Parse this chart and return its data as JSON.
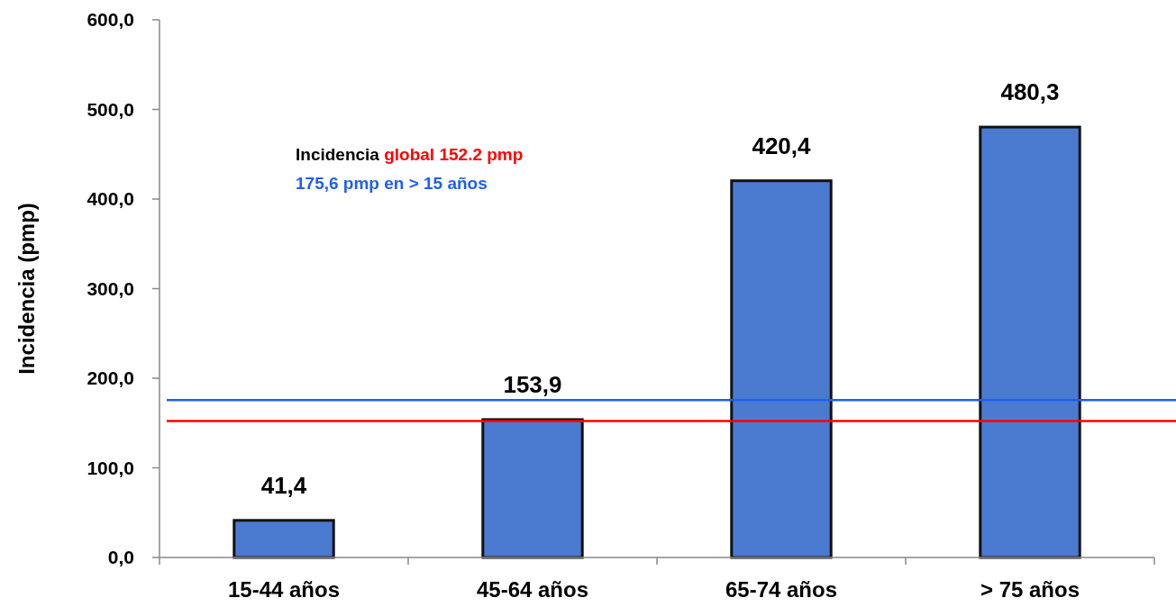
{
  "chart_data": {
    "type": "bar",
    "ylabel": "Incidencia (pmp)",
    "categories": [
      "15-44 años",
      "45-64 años",
      "65-74 años",
      "> 75 años"
    ],
    "values": [
      41.4,
      153.9,
      420.4,
      480.3
    ],
    "value_labels": [
      "41,4",
      "153,9",
      "420,4",
      "480,3"
    ],
    "color": "#4a7bd0",
    "ylim": [
      0,
      600
    ],
    "yticks": [
      {
        "value": 0,
        "label": "0,0"
      },
      {
        "value": 100,
        "label": "100,0"
      },
      {
        "value": 200,
        "label": "200,0"
      },
      {
        "value": 300,
        "label": "300,0"
      },
      {
        "value": 400,
        "label": "400,0"
      },
      {
        "value": 500,
        "label": "500,0"
      },
      {
        "value": 600,
        "label": "600,0"
      }
    ],
    "grid": false,
    "ref_lines": [
      {
        "axis": "y",
        "value": 152.2,
        "label": "global 152.2 pmp",
        "color": "#ff0000"
      },
      {
        "axis": "y",
        "value": 175.6,
        "label": "175,6 pmp en > 15 años",
        "color": "#1f5ff0"
      }
    ],
    "annotations": [
      "Incidencia"
    ]
  }
}
